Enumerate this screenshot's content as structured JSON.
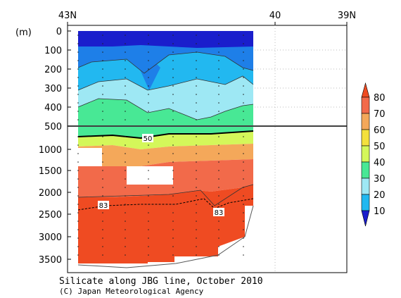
{
  "chart_data": {
    "type": "heatmap",
    "title": "Silicate along JBG line, October 2010",
    "credit": "(C) Japan Meteorological Agency",
    "ylabel": "(m)",
    "x_ticks": [
      "43N",
      "40",
      "39N"
    ],
    "y_ticks_upper": [
      "0",
      "100",
      "200",
      "300",
      "400",
      "500"
    ],
    "y_ticks_lower": [
      "1000",
      "1500",
      "2000",
      "2500",
      "3000",
      "3500"
    ],
    "y_scale_break": 500,
    "colorbar": {
      "levels": [
        10,
        20,
        30,
        40,
        50,
        60,
        70,
        80
      ],
      "colors": [
        "#1a1ecc",
        "#1e7fe8",
        "#22b8f0",
        "#9ee8f4",
        "#48e895",
        "#d4f75a",
        "#f4e03c",
        "#f4a85a",
        "#f26a4a",
        "#ef4b22"
      ]
    },
    "contour_labels": [
      "50",
      "83",
      "83"
    ]
  }
}
